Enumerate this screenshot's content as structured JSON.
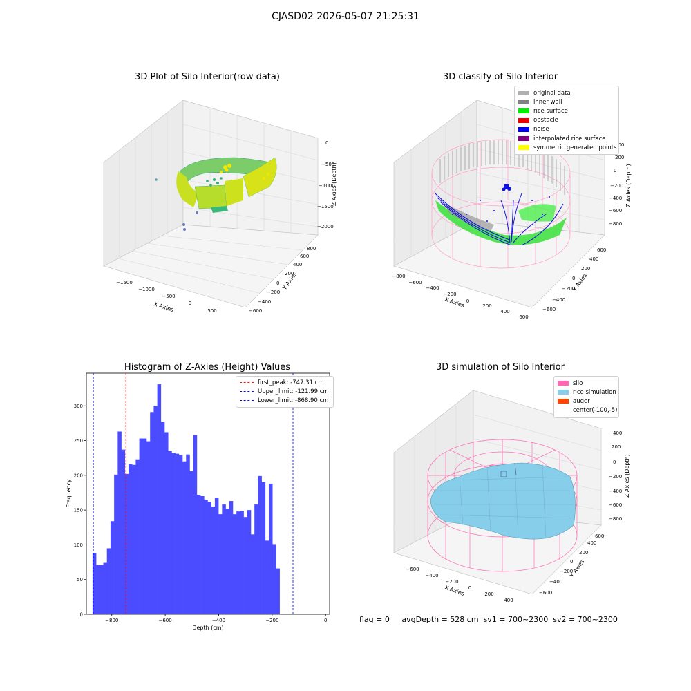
{
  "header": {
    "title": "CJASD02 2026-05-07 21:25:31"
  },
  "panel_raw": {
    "title": "3D Plot of Silo Interior(row data)",
    "xlabel": "X Axies",
    "ylabel": "Y Axies",
    "zlabel": "Z Axies (Depth)",
    "xticks": [
      "−1500",
      "−1000",
      "−500",
      "0",
      "500"
    ],
    "yticks": [
      "−600",
      "−400",
      "−200",
      "0",
      "200",
      "400",
      "600",
      "800"
    ],
    "zticks": [
      "0",
      "−500",
      "−1000",
      "−1500",
      "−2000"
    ]
  },
  "panel_classify": {
    "title": "3D classify of Silo Interior",
    "xlabel": "X Axies",
    "ylabel": "Y Axies",
    "zlabel": "Z Axies (Depth)",
    "xticks": [
      "−800",
      "−600",
      "−400",
      "−200",
      "0",
      "200",
      "400",
      "600"
    ],
    "yticks": [
      "−600",
      "−400",
      "−200",
      "0",
      "200",
      "400",
      "600"
    ],
    "zticks": [
      "200",
      "0",
      "−200",
      "−400",
      "−600",
      "−800"
    ],
    "legend": [
      {
        "label": "original data",
        "color": "#b0b0b0"
      },
      {
        "label": "inner wall",
        "color": "#808080"
      },
      {
        "label": "rice surface",
        "color": "#00ee00"
      },
      {
        "label": "obstacle",
        "color": "#ee0000"
      },
      {
        "label": "noise",
        "color": "#0000ee"
      },
      {
        "label": "interpolated rice surface",
        "color": "#800080"
      },
      {
        "label": "symmetric generated points",
        "color": "#ffff00"
      }
    ]
  },
  "panel_sim": {
    "title": "3D simulation of Silo Interior",
    "xlabel": "X Axies",
    "ylabel": "Y Axies",
    "zlabel": "Z Axies (Depth)",
    "xticks": [
      "−600",
      "−400",
      "−200",
      "0",
      "200",
      "400"
    ],
    "yticks": [
      "−600",
      "−400",
      "−200",
      "0",
      "200",
      "400",
      "600"
    ],
    "zticks": [
      "400",
      "200",
      "0",
      "−200",
      "−400",
      "−600",
      "−800"
    ],
    "legend": [
      {
        "label": "silo",
        "color": "#ff69b4"
      },
      {
        "label": "rice simulation",
        "color": "#87ceeb"
      },
      {
        "label": "auger",
        "color": "#ff4500"
      },
      {
        "label": "center(-100,-5)",
        "color": ""
      }
    ]
  },
  "status": {
    "flag": "flag = 0",
    "avg_depth": "avgDepth = 528 cm",
    "sv1": "sv1 = 700~2300",
    "sv2": "sv2 = 700~2300"
  },
  "chart_data": [
    {
      "type": "histogram",
      "title": "Histogram of Z-Axies (Height) Values",
      "xlabel": "Depth (cm)",
      "ylabel": "Frequency",
      "xlim": [
        -895,
        15
      ],
      "ylim": [
        0,
        347
      ],
      "bar_color": "#4b4bff",
      "bin_start": -872,
      "bin_width": 13.46,
      "values": [
        88,
        71,
        71,
        74,
        95,
        134,
        201,
        263,
        237,
        202,
        216,
        215,
        223,
        253,
        253,
        249,
        291,
        300,
        331,
        277,
        262,
        235,
        232,
        231,
        229,
        220,
        230,
        206,
        258,
        172,
        170,
        165,
        162,
        155,
        168,
        144,
        158,
        152,
        163,
        144,
        148,
        149,
        140,
        150,
        115,
        158,
        199,
        190,
        106,
        188,
        101,
        66
      ],
      "xticks": [
        -800,
        -600,
        -400,
        -200,
        0
      ],
      "yticks": [
        0,
        50,
        100,
        150,
        200,
        250,
        300
      ],
      "vlines": [
        {
          "label": "first_peak: -747.31 cm",
          "x": -747.31,
          "color": "#ff0000"
        },
        {
          "label": "Upper_limit: -121.99 cm",
          "x": -121.99,
          "color": "#0000ff"
        },
        {
          "label": "Lower_limit: -868.90 cm",
          "x": -868.9,
          "color": "#0000ff"
        }
      ],
      "legend_position": "top-right"
    }
  ]
}
